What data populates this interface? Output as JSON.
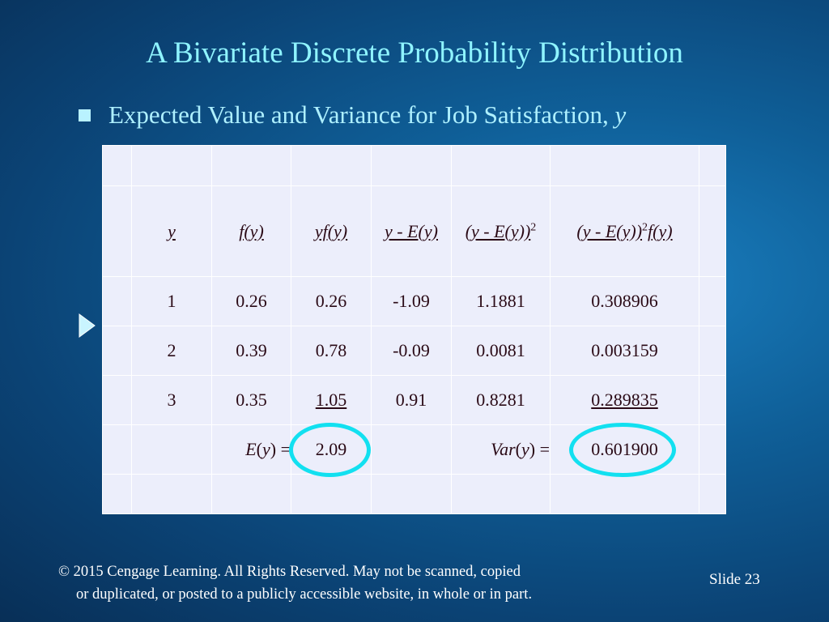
{
  "title": "A Bivariate Discrete  Probability Distribution",
  "bullet": {
    "text": "Expected Value and Variance for Job Satisfaction, ",
    "variable": "y"
  },
  "table": {
    "headers": {
      "y": "y",
      "f": "f(y)",
      "yf": "yf(y)",
      "dev": "y - E(y)",
      "dev_sq": "(y - E(y))",
      "dev_sq_f": "(y - E(y))",
      "dev_sq_f_tail": "f(y)",
      "exponent": "2"
    },
    "rows": [
      {
        "y": "1",
        "f": "0.26",
        "yf": "0.26",
        "dev": "-1.09",
        "dev_sq": "1.1881",
        "dev_sq_f": "0.308906"
      },
      {
        "y": "2",
        "f": "0.39",
        "yf": "0.78",
        "dev": "-0.09",
        "dev_sq": "0.0081",
        "dev_sq_f": "0.003159"
      },
      {
        "y": "3",
        "f": "0.35",
        "yf": "1.05",
        "dev": "0.91",
        "dev_sq": "0.8281",
        "dev_sq_f": "0.289835"
      }
    ],
    "summary": {
      "ev_label": "E(y) =",
      "ev_value": "2.09",
      "var_label": "Var(y) =",
      "var_value": "0.601900"
    }
  },
  "footer": {
    "line1": "© 2015  Cengage Learning.  All Rights Reserved.  May not be scanned, copied",
    "line2": "or duplicated, or posted to a publicly accessible website, in whole or in part.",
    "slide_label": "Slide  23"
  },
  "colors": {
    "title": "#8ff4ff",
    "circle": "#12e0f0",
    "table_bg": "#eceefb",
    "text": "#2a0a16"
  },
  "icons": {
    "bullet": "square-bullet-icon",
    "pointer": "triangle-pointer-icon"
  }
}
